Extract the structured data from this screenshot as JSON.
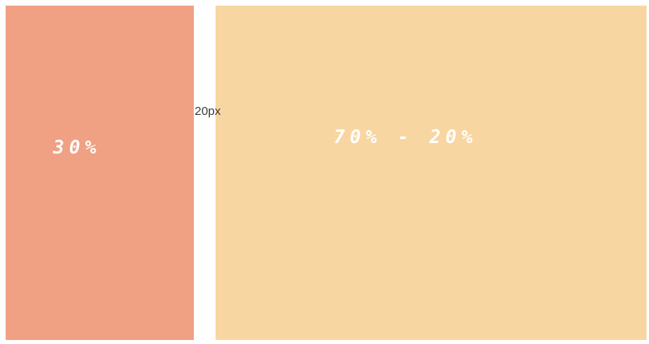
{
  "page": {
    "background": "#ffffff"
  },
  "columns": {
    "left": {
      "label": "30%",
      "background": "#f0a083",
      "label_color": "#ffffff"
    },
    "right": {
      "label": "70% - 20%",
      "background": "#f8d6a2",
      "label_color": "#ffffff"
    }
  },
  "gap": {
    "label": "20px",
    "label_color": "#3d3d3d"
  }
}
